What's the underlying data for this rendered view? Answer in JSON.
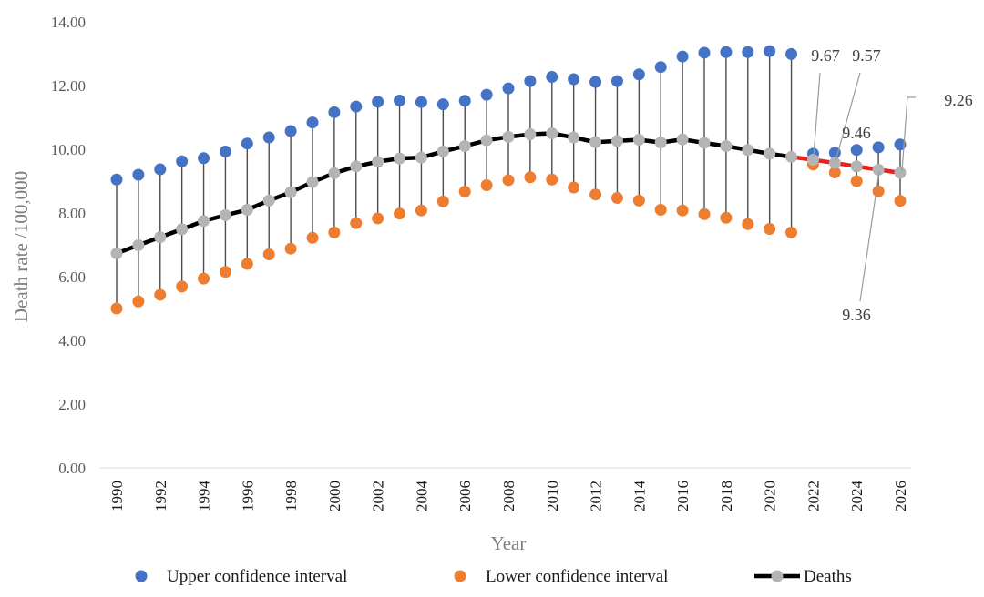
{
  "chart_data": {
    "type": "line",
    "xlabel": "Year",
    "ylabel": "Death rate /100,000",
    "ylim": [
      0,
      14
    ],
    "yticks": [
      "0.00",
      "2.00",
      "4.00",
      "6.00",
      "8.00",
      "10.00",
      "12.00",
      "14.00"
    ],
    "xticks": [
      "1990",
      "1992",
      "1994",
      "1996",
      "1998",
      "2000",
      "2002",
      "2004",
      "2006",
      "2008",
      "2010",
      "2012",
      "2014",
      "2016",
      "2018",
      "2020",
      "2022",
      "2024",
      "2026"
    ],
    "x": [
      1990,
      1991,
      1992,
      1993,
      1994,
      1995,
      1996,
      1997,
      1998,
      1999,
      2000,
      2001,
      2002,
      2003,
      2004,
      2005,
      2006,
      2007,
      2008,
      2009,
      2010,
      2011,
      2012,
      2013,
      2014,
      2015,
      2016,
      2017,
      2018,
      2019,
      2020,
      2021,
      2022,
      2023,
      2024,
      2025,
      2026
    ],
    "series": [
      {
        "name": "Upper confidence interval",
        "color": "#4472c4",
        "values": [
          9.05,
          9.2,
          9.37,
          9.62,
          9.72,
          9.93,
          10.18,
          10.37,
          10.57,
          10.84,
          11.16,
          11.34,
          11.49,
          11.53,
          11.48,
          11.41,
          11.52,
          11.71,
          11.91,
          12.14,
          12.27,
          12.2,
          12.11,
          12.14,
          12.35,
          12.58,
          12.91,
          13.03,
          13.05,
          13.05,
          13.08,
          12.99,
          9.86,
          9.89,
          9.98,
          10.06,
          10.15
        ]
      },
      {
        "name": "Lower confidence  interval",
        "color": "#ed7d31",
        "values": [
          5.0,
          5.22,
          5.43,
          5.69,
          5.94,
          6.15,
          6.4,
          6.7,
          6.88,
          7.22,
          7.39,
          7.68,
          7.83,
          7.98,
          8.08,
          8.36,
          8.67,
          8.87,
          9.03,
          9.12,
          9.05,
          8.8,
          8.58,
          8.47,
          8.39,
          8.1,
          8.08,
          7.96,
          7.85,
          7.65,
          7.5,
          7.39,
          9.52,
          9.27,
          9.0,
          8.68,
          8.38
        ]
      },
      {
        "name": "Deaths",
        "color": "#000000",
        "marker_color": "#b4b4b4",
        "forecast_color": "#e8201e",
        "forecast_from": 2021,
        "values": [
          6.73,
          6.99,
          7.24,
          7.49,
          7.75,
          7.93,
          8.1,
          8.39,
          8.65,
          8.97,
          9.25,
          9.46,
          9.61,
          9.71,
          9.74,
          9.93,
          10.1,
          10.28,
          10.39,
          10.47,
          10.5,
          10.37,
          10.22,
          10.26,
          10.3,
          10.21,
          10.31,
          10.2,
          10.1,
          9.98,
          9.86,
          9.76,
          9.67,
          9.57,
          9.46,
          9.36,
          9.26
        ]
      }
    ],
    "annotations": [
      {
        "text": "9.67",
        "x": 2022
      },
      {
        "text": "9.57",
        "x": 2023
      },
      {
        "text": "9.46",
        "x": 2024
      },
      {
        "text": "9.36",
        "x": 2025
      },
      {
        "text": "9.26",
        "x": 2026
      }
    ],
    "grid": false,
    "legend_position": "bottom"
  }
}
